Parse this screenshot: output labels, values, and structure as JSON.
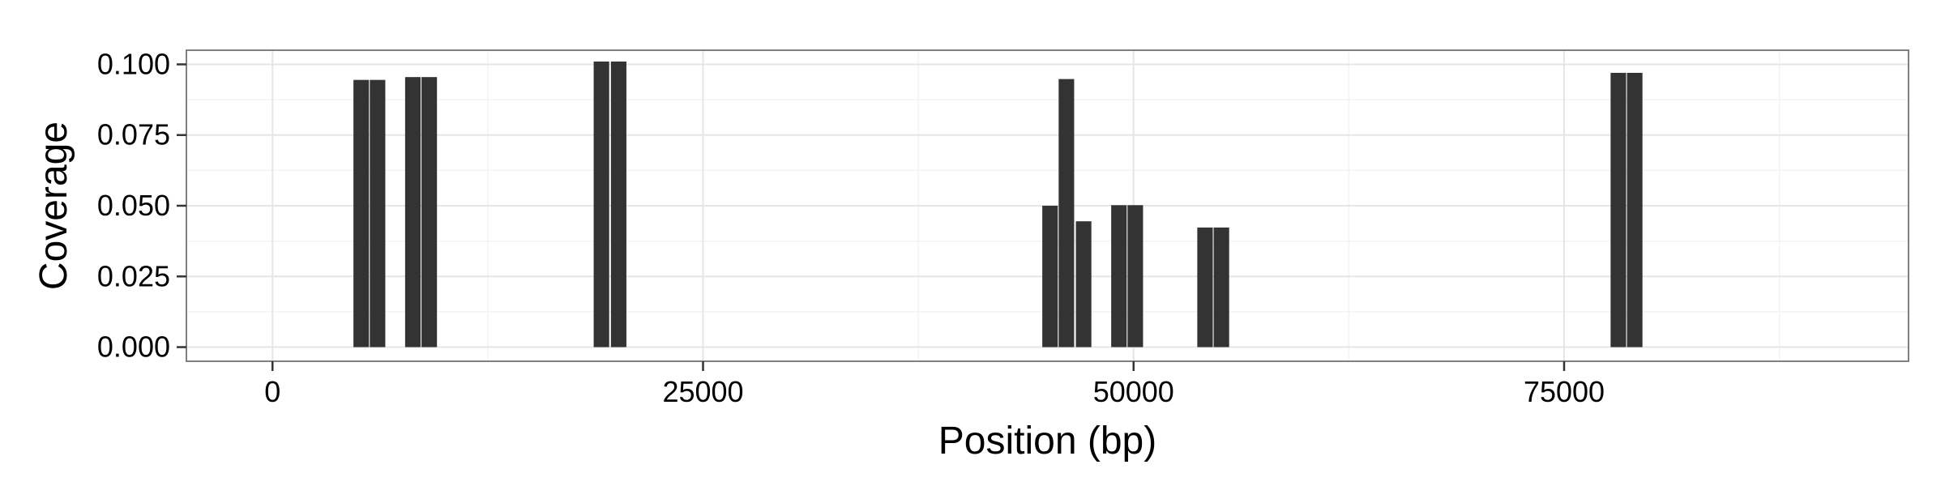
{
  "chart_data": {
    "type": "bar",
    "title": "",
    "xlabel": "Position (bp)",
    "ylabel": "Coverage",
    "xlim": [
      -5000,
      95000
    ],
    "ylim": [
      -0.005,
      0.105
    ],
    "x_ticks": [
      0,
      25000,
      50000,
      75000
    ],
    "y_ticks": [
      0.0,
      0.025,
      0.05,
      0.075,
      0.1
    ],
    "x_tick_labels": [
      "0",
      "25000",
      "50000",
      "75000"
    ],
    "y_tick_labels": [
      "0.000",
      "0.025",
      "0.050",
      "0.075",
      "0.100"
    ],
    "grid": true,
    "legend": "none",
    "bar_width": 900,
    "bar_color": "#333333",
    "series": [
      {
        "x": [
          5150,
          6100,
          8150,
          9100,
          19100,
          20100,
          45150,
          46100,
          47100,
          49150,
          50100,
          54150,
          55100,
          78150,
          79100
        ],
        "values": [
          0.0945,
          0.0945,
          0.0955,
          0.0955,
          0.101,
          0.101,
          0.05,
          0.0948,
          0.0445,
          0.0502,
          0.0502,
          0.0423,
          0.0423,
          0.097,
          0.097
        ]
      }
    ]
  }
}
